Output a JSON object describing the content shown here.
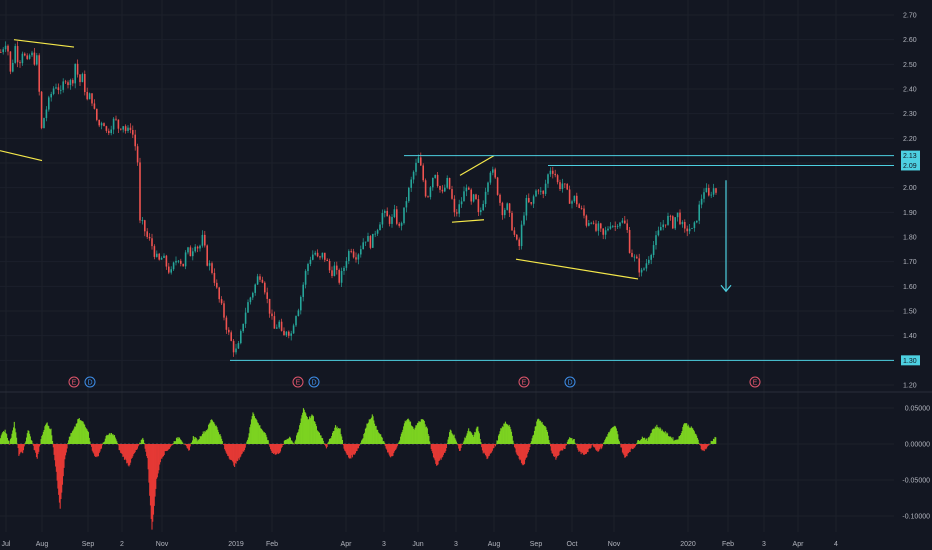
{
  "chart_data": [
    {
      "type": "candlestick",
      "title": "",
      "y_axis_ticks": [
        "2.70",
        "2.60",
        "2.50",
        "2.40",
        "2.30",
        "2.20",
        "2.10",
        "2.00",
        "1.90",
        "1.80",
        "1.70",
        "1.60",
        "1.50",
        "1.40",
        "1.30",
        "1.20"
      ],
      "ylim": [
        1.17,
        2.75
      ],
      "x_axis_ticks": [
        "Jul",
        "Aug",
        "Sep",
        "2",
        "Nov",
        "2019",
        "Feb",
        "Apr",
        "3",
        "Jun",
        "3",
        "Aug",
        "Sep",
        "Oct",
        "Nov",
        "2020",
        "Feb",
        "3",
        "Apr",
        "4"
      ],
      "price_tags": [
        {
          "label": "2.13",
          "value": 2.13
        },
        {
          "label": "2.09",
          "value": 2.09
        },
        {
          "label": "1.30",
          "value": 1.3
        }
      ],
      "colors": {
        "up": "#26a69a",
        "down": "#ef5350",
        "drawing_yellow": "#f5e84a",
        "drawing_cyan": "#4dd0e1"
      },
      "price_path": [
        [
          0,
          2.55
        ],
        [
          6,
          2.6
        ],
        [
          10,
          2.45
        ],
        [
          14,
          2.58
        ],
        [
          18,
          2.5
        ],
        [
          22,
          2.56
        ],
        [
          26,
          2.5
        ],
        [
          30,
          2.55
        ],
        [
          34,
          2.51
        ],
        [
          37,
          2.53
        ],
        [
          40,
          2.22
        ],
        [
          44,
          2.3
        ],
        [
          48,
          2.35
        ],
        [
          52,
          2.4
        ],
        [
          56,
          2.42
        ],
        [
          60,
          2.38
        ],
        [
          64,
          2.45
        ],
        [
          68,
          2.42
        ],
        [
          72,
          2.44
        ],
        [
          75,
          2.52
        ],
        [
          78,
          2.42
        ],
        [
          82,
          2.45
        ],
        [
          86,
          2.35
        ],
        [
          90,
          2.38
        ],
        [
          94,
          2.3
        ],
        [
          98,
          2.25
        ],
        [
          102,
          2.28
        ],
        [
          106,
          2.22
        ],
        [
          110,
          2.25
        ],
        [
          114,
          2.28
        ],
        [
          118,
          2.24
        ],
        [
          122,
          2.26
        ],
        [
          126,
          2.22
        ],
        [
          130,
          2.25
        ],
        [
          134,
          2.18
        ],
        [
          137,
          2.1
        ],
        [
          138,
          1.86
        ],
        [
          142,
          1.85
        ],
        [
          146,
          1.8
        ],
        [
          150,
          1.78
        ],
        [
          154,
          1.73
        ],
        [
          158,
          1.7
        ],
        [
          162,
          1.72
        ],
        [
          166,
          1.68
        ],
        [
          170,
          1.65
        ],
        [
          174,
          1.7
        ],
        [
          178,
          1.72
        ],
        [
          182,
          1.68
        ],
        [
          186,
          1.75
        ],
        [
          190,
          1.73
        ],
        [
          194,
          1.78
        ],
        [
          198,
          1.75
        ],
        [
          202,
          1.8
        ],
        [
          206,
          1.7
        ],
        [
          210,
          1.68
        ],
        [
          214,
          1.62
        ],
        [
          218,
          1.55
        ],
        [
          222,
          1.5
        ],
        [
          226,
          1.43
        ],
        [
          230,
          1.38
        ],
        [
          234,
          1.33
        ],
        [
          238,
          1.36
        ],
        [
          242,
          1.45
        ],
        [
          246,
          1.52
        ],
        [
          250,
          1.56
        ],
        [
          254,
          1.6
        ],
        [
          258,
          1.65
        ],
        [
          262,
          1.63
        ],
        [
          266,
          1.55
        ],
        [
          270,
          1.48
        ],
        [
          274,
          1.42
        ],
        [
          278,
          1.46
        ],
        [
          282,
          1.38
        ],
        [
          286,
          1.43
        ],
        [
          290,
          1.4
        ],
        [
          294,
          1.48
        ],
        [
          298,
          1.52
        ],
        [
          302,
          1.6
        ],
        [
          306,
          1.68
        ],
        [
          310,
          1.72
        ],
        [
          314,
          1.74
        ],
        [
          318,
          1.7
        ],
        [
          322,
          1.73
        ],
        [
          326,
          1.7
        ],
        [
          330,
          1.65
        ],
        [
          334,
          1.68
        ],
        [
          338,
          1.62
        ],
        [
          342,
          1.66
        ],
        [
          346,
          1.72
        ],
        [
          350,
          1.76
        ],
        [
          354,
          1.72
        ],
        [
          358,
          1.74
        ],
        [
          362,
          1.78
        ],
        [
          366,
          1.8
        ],
        [
          370,
          1.77
        ],
        [
          374,
          1.82
        ],
        [
          378,
          1.85
        ],
        [
          382,
          1.9
        ],
        [
          386,
          1.88
        ],
        [
          390,
          1.86
        ],
        [
          394,
          1.9
        ],
        [
          398,
          1.83
        ],
        [
          402,
          1.88
        ],
        [
          406,
          1.96
        ],
        [
          410,
          2.02
        ],
        [
          414,
          2.08
        ],
        [
          418,
          2.12
        ],
        [
          422,
          2.04
        ],
        [
          426,
          1.95
        ],
        [
          430,
          2.02
        ],
        [
          434,
          2.07
        ],
        [
          438,
          2.0
        ],
        [
          442,
          1.97
        ],
        [
          446,
          2.03
        ],
        [
          450,
          1.98
        ],
        [
          454,
          1.88
        ],
        [
          458,
          1.92
        ],
        [
          462,
          1.96
        ],
        [
          466,
          2.02
        ],
        [
          470,
          1.93
        ],
        [
          474,
          1.97
        ],
        [
          478,
          1.88
        ],
        [
          482,
          1.94
        ],
        [
          486,
          2.02
        ],
        [
          490,
          2.08
        ],
        [
          494,
          2.04
        ],
        [
          498,
          1.96
        ],
        [
          502,
          1.9
        ],
        [
          506,
          1.93
        ],
        [
          510,
          1.86
        ],
        [
          514,
          1.8
        ],
        [
          518,
          1.75
        ],
        [
          522,
          1.88
        ],
        [
          526,
          1.95
        ],
        [
          530,
          1.92
        ],
        [
          534,
          1.98
        ],
        [
          538,
          2.0
        ],
        [
          542,
          1.96
        ],
        [
          546,
          2.04
        ],
        [
          550,
          2.08
        ],
        [
          554,
          2.06
        ],
        [
          558,
          2.0
        ],
        [
          562,
          2.02
        ],
        [
          566,
          1.98
        ],
        [
          570,
          1.94
        ],
        [
          574,
          1.96
        ],
        [
          578,
          1.92
        ],
        [
          582,
          1.9
        ],
        [
          586,
          1.85
        ],
        [
          590,
          1.88
        ],
        [
          594,
          1.82
        ],
        [
          598,
          1.84
        ],
        [
          602,
          1.8
        ],
        [
          606,
          1.83
        ],
        [
          610,
          1.86
        ],
        [
          614,
          1.84
        ],
        [
          618,
          1.87
        ],
        [
          622,
          1.86
        ],
        [
          626,
          1.84
        ],
        [
          628,
          1.76
        ],
        [
          632,
          1.72
        ],
        [
          636,
          1.7
        ],
        [
          640,
          1.65
        ],
        [
          644,
          1.68
        ],
        [
          648,
          1.72
        ],
        [
          652,
          1.76
        ],
        [
          656,
          1.8
        ],
        [
          660,
          1.84
        ],
        [
          664,
          1.86
        ],
        [
          668,
          1.88
        ],
        [
          672,
          1.85
        ],
        [
          676,
          1.9
        ],
        [
          680,
          1.86
        ],
        [
          684,
          1.82
        ],
        [
          688,
          1.84
        ],
        [
          692,
          1.82
        ],
        [
          696,
          1.88
        ],
        [
          700,
          1.95
        ],
        [
          704,
          2.0
        ],
        [
          708,
          1.96
        ],
        [
          712,
          2.0
        ],
        [
          716,
          1.98
        ]
      ],
      "drawings": [
        {
          "kind": "trendline",
          "color": "yellow",
          "from": [
            14,
            2.6
          ],
          "to": [
            74,
            2.57
          ]
        },
        {
          "kind": "trendline",
          "color": "yellow",
          "from": [
            0,
            2.15
          ],
          "to": [
            42,
            2.11
          ]
        },
        {
          "kind": "trendline",
          "color": "yellow",
          "from": [
            460,
            2.05
          ],
          "to": [
            494,
            2.13
          ]
        },
        {
          "kind": "trendline",
          "color": "yellow",
          "from": [
            452,
            1.86
          ],
          "to": [
            484,
            1.87
          ]
        },
        {
          "kind": "trendline",
          "color": "yellow",
          "from": [
            516,
            1.71
          ],
          "to": [
            638,
            1.63
          ]
        },
        {
          "kind": "horizontal",
          "color": "cyan",
          "value": 2.13,
          "from_x": 404
        },
        {
          "kind": "horizontal",
          "color": "cyan",
          "value": 2.09,
          "from_x": 548
        },
        {
          "kind": "horizontal",
          "color": "cyan",
          "value": 1.3,
          "from_x": 230
        },
        {
          "kind": "arrow",
          "color": "cyan",
          "from": [
            726,
            2.03
          ],
          "to": [
            726,
            1.58
          ]
        }
      ],
      "event_markers": [
        {
          "label": "E",
          "kind": "earnings",
          "x": 74
        },
        {
          "label": "D",
          "kind": "dividend",
          "x": 90
        },
        {
          "label": "E",
          "kind": "earnings",
          "x": 298
        },
        {
          "label": "D",
          "kind": "dividend",
          "x": 314
        },
        {
          "label": "E",
          "kind": "earnings",
          "x": 524
        },
        {
          "label": "D",
          "kind": "dividend",
          "x": 570
        },
        {
          "label": "E",
          "kind": "earnings",
          "x": 755
        }
      ]
    },
    {
      "type": "area",
      "title": "",
      "y_axis_ticks": [
        "0.05000",
        "0.00000",
        "-0.05000",
        "-0.10000"
      ],
      "ylim": [
        -0.125,
        0.065
      ],
      "baseline": 0,
      "colors": {
        "positive": "#7cd321",
        "negative": "#e53935"
      },
      "values": [
        0.01,
        0.02,
        0.0,
        0.03,
        -0.015,
        -0.01,
        0.02,
        0.0,
        -0.02,
        0.01,
        0.03,
        0.02,
        -0.03,
        -0.09,
        -0.02,
        0.01,
        0.02,
        0.035,
        0.03,
        0.02,
        -0.01,
        -0.02,
        -0.005,
        0.01,
        0.015,
        0.01,
        -0.01,
        -0.02,
        -0.03,
        -0.015,
        -0.005,
        0.01,
        -0.02,
        -0.12,
        -0.05,
        -0.02,
        -0.01,
        -0.005,
        0.005,
        0.01,
        0.0,
        -0.01,
        0.01,
        0.005,
        0.015,
        0.02,
        0.035,
        0.025,
        0.01,
        -0.01,
        -0.02,
        -0.03,
        -0.02,
        -0.01,
        0.01,
        0.045,
        0.03,
        0.02,
        0.01,
        -0.01,
        -0.015,
        -0.01,
        0.005,
        0.01,
        0.0,
        0.02,
        0.05,
        0.035,
        0.04,
        0.02,
        0.01,
        -0.005,
        0.01,
        0.025,
        0.02,
        -0.01,
        -0.02,
        -0.015,
        -0.005,
        0.01,
        0.03,
        0.04,
        0.02,
        0.01,
        -0.005,
        -0.02,
        -0.01,
        0.005,
        0.03,
        0.035,
        0.02,
        0.03,
        0.035,
        0.02,
        -0.01,
        -0.03,
        -0.02,
        -0.01,
        0.02,
        0.01,
        -0.01,
        0.005,
        0.02,
        0.01,
        0.025,
        -0.01,
        -0.02,
        -0.01,
        0.0,
        0.02,
        0.03,
        0.025,
        -0.005,
        -0.02,
        -0.03,
        -0.01,
        0.01,
        0.035,
        0.03,
        0.02,
        -0.01,
        -0.02,
        -0.01,
        -0.005,
        0.01,
        0.005,
        -0.01,
        -0.015,
        -0.01,
        0.0,
        -0.01,
        -0.005,
        0.01,
        0.02,
        0.025,
        0.0,
        -0.02,
        -0.01,
        -0.005,
        0.005,
        0.01,
        0.005,
        0.02,
        0.025,
        0.02,
        0.015,
        0.01,
        0.005,
        0.01,
        0.03,
        0.025,
        0.02,
        0.005,
        -0.01,
        -0.005,
        0.005,
        0.01
      ]
    }
  ]
}
